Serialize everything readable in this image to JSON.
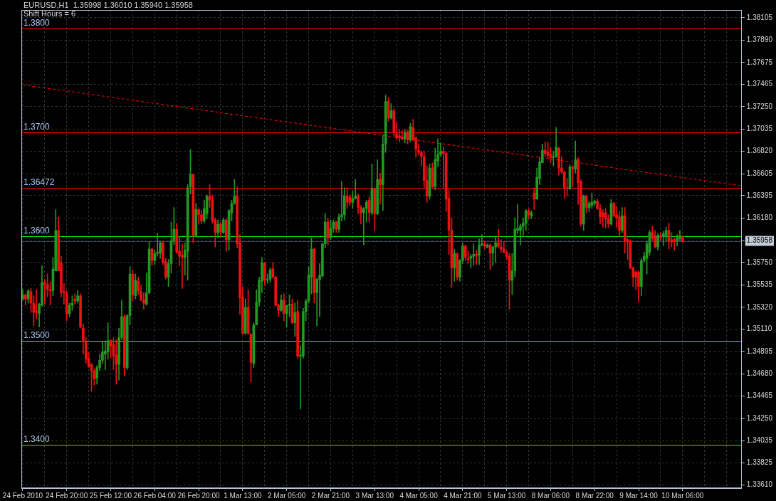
{
  "chart_data": {
    "type": "candlestick",
    "title": "EURUSD,H1  1.35998 1.36010 1.35940 1.35958",
    "subtitle": "Shift Hours = 6",
    "categories": [
      "24 Feb 2010",
      null,
      null,
      null,
      null,
      null,
      null,
      null,
      null,
      null,
      null,
      null,
      null,
      null,
      null,
      null,
      "24 Feb 20:00",
      null,
      null,
      null,
      null,
      null,
      null,
      null,
      null,
      null,
      null,
      null,
      null,
      null,
      null,
      null,
      "25 Feb 12:00",
      null,
      null,
      null,
      null,
      null,
      null,
      null,
      null,
      null,
      null,
      null,
      null,
      null,
      null,
      null,
      "26 Feb 04:00",
      null,
      null,
      null,
      null,
      null,
      null,
      null,
      null,
      null,
      null,
      null,
      null,
      null,
      null,
      null,
      "26 Feb 20:00",
      null,
      null,
      null,
      null,
      null,
      null,
      null,
      null,
      null,
      null,
      null,
      null,
      null,
      null,
      null,
      "1 Mar 13:00",
      null,
      null,
      null,
      null,
      null,
      null,
      null,
      null,
      null,
      null,
      null,
      null,
      null,
      null,
      null,
      "2 Mar 05:00",
      null,
      null,
      null,
      null,
      null,
      null,
      null,
      null,
      null,
      null,
      null,
      null,
      null,
      null,
      null,
      "2 Mar 21:00",
      null,
      null,
      null,
      null,
      null,
      null,
      null,
      null,
      null,
      null,
      null,
      null,
      null,
      null,
      null,
      "3 Mar 13:00",
      null,
      null,
      null,
      null,
      null,
      null,
      null,
      null,
      null,
      null,
      null,
      null,
      null,
      null,
      null,
      "4 Mar 05:00",
      null,
      null,
      null,
      null,
      null,
      null,
      null,
      null,
      null,
      null,
      null,
      null,
      null,
      null,
      null,
      "4 Mar 21:00",
      null,
      null,
      null,
      null,
      null,
      null,
      null,
      null,
      null,
      null,
      null,
      null,
      null,
      null,
      null,
      "5 Mar 13:00",
      null,
      null,
      null,
      null,
      null,
      null,
      null,
      null,
      null,
      null,
      null,
      null,
      null,
      null,
      null,
      "8 Mar 06:00",
      null,
      null,
      null,
      null,
      null,
      null,
      null,
      null,
      null,
      null,
      null,
      null,
      null,
      null,
      null,
      "8 Mar 22:00",
      null,
      null,
      null,
      null,
      null,
      null,
      null,
      null,
      null,
      null,
      null,
      null,
      null,
      null,
      null,
      "9 Mar 14:00",
      null,
      null,
      null,
      null,
      null,
      null,
      null,
      null,
      null,
      null,
      null,
      null,
      null,
      null,
      null,
      "10 Mar 06:00",
      null,
      null,
      null,
      null,
      null,
      null,
      null,
      null,
      null,
      null,
      null,
      null,
      null,
      null,
      null,
      null,
      null,
      null,
      null,
      null,
      null
    ],
    "ohlc": [
      [
        1.354,
        1.3549,
        1.3539,
        1.3544
      ],
      [
        1.3544,
        1.3545,
        1.3534,
        1.354
      ],
      [
        1.354,
        1.3549,
        1.3536,
        1.3548
      ],
      [
        1.3547,
        1.355,
        1.3527,
        1.3536
      ],
      [
        1.3536,
        1.3543,
        1.3514,
        1.3527
      ],
      [
        1.3528,
        1.3549,
        1.3521,
        1.3527
      ],
      [
        1.3526,
        1.3536,
        1.3513,
        1.3535
      ],
      [
        1.3534,
        1.3572,
        1.3533,
        1.3556
      ],
      [
        1.3556,
        1.3559,
        1.3535,
        1.3554
      ],
      [
        1.3554,
        1.3564,
        1.3542,
        1.3549
      ],
      [
        1.3549,
        1.3556,
        1.3534,
        1.3548
      ],
      [
        1.3548,
        1.358,
        1.3543,
        1.3569
      ],
      [
        1.3567,
        1.3626,
        1.3567,
        1.3606
      ],
      [
        1.3606,
        1.3619,
        1.3567,
        1.3567
      ],
      [
        1.3575,
        1.3581,
        1.3542,
        1.3546
      ],
      [
        1.3547,
        1.3555,
        1.3535,
        1.3546
      ],
      [
        1.3546,
        1.3548,
        1.3519,
        1.3526
      ],
      [
        1.3526,
        1.3536,
        1.3523,
        1.3534
      ],
      [
        1.3534,
        1.3543,
        1.3529,
        1.3536
      ],
      [
        1.354,
        1.3545,
        1.3535,
        1.3538
      ],
      [
        1.3538,
        1.3548,
        1.3536,
        1.3543
      ],
      [
        1.3543,
        1.3545,
        1.3512,
        1.3513
      ],
      [
        1.3512,
        1.3516,
        1.3487,
        1.3499
      ],
      [
        1.3499,
        1.3503,
        1.3478,
        1.3482
      ],
      [
        1.3483,
        1.3489,
        1.3474,
        1.3475
      ],
      [
        1.3477,
        1.3478,
        1.3451,
        1.3471
      ],
      [
        1.3471,
        1.3473,
        1.3457,
        1.3463
      ],
      [
        1.3464,
        1.3476,
        1.3458,
        1.3474
      ],
      [
        1.3474,
        1.3487,
        1.3471,
        1.3481
      ],
      [
        1.3481,
        1.3499,
        1.3478,
        1.3489
      ],
      [
        1.3487,
        1.3499,
        1.3472,
        1.349
      ],
      [
        1.3489,
        1.3517,
        1.3482,
        1.35
      ],
      [
        1.35,
        1.3501,
        1.3483,
        1.3495
      ],
      [
        1.3496,
        1.3503,
        1.3472,
        1.3485
      ],
      [
        1.3486,
        1.3501,
        1.3458,
        1.3477
      ],
      [
        1.3477,
        1.3512,
        1.3462,
        1.3503
      ],
      [
        1.3503,
        1.3539,
        1.3501,
        1.3523
      ],
      [
        1.3523,
        1.3525,
        1.3466,
        1.3474
      ],
      [
        1.3474,
        1.3525,
        1.3472,
        1.3524
      ],
      [
        1.3524,
        1.3571,
        1.3515,
        1.3564
      ],
      [
        1.3564,
        1.3568,
        1.3538,
        1.3544
      ],
      [
        1.3543,
        1.3564,
        1.354,
        1.3558
      ],
      [
        1.3557,
        1.3561,
        1.3544,
        1.3548
      ],
      [
        1.3547,
        1.3553,
        1.3538,
        1.3539
      ],
      [
        1.3539,
        1.3546,
        1.353,
        1.3536
      ],
      [
        1.3535,
        1.3565,
        1.3534,
        1.3546
      ],
      [
        1.3546,
        1.3595,
        1.3545,
        1.3588
      ],
      [
        1.3588,
        1.3589,
        1.3572,
        1.3577
      ],
      [
        1.3577,
        1.3587,
        1.3573,
        1.3584
      ],
      [
        1.3584,
        1.3603,
        1.3581,
        1.3585
      ],
      [
        1.3584,
        1.3596,
        1.3579,
        1.3594
      ],
      [
        1.3594,
        1.3596,
        1.3573,
        1.3575
      ],
      [
        1.3576,
        1.3579,
        1.3559,
        1.3561
      ],
      [
        1.3561,
        1.3578,
        1.3552,
        1.3574
      ],
      [
        1.3574,
        1.3614,
        1.3565,
        1.3596
      ],
      [
        1.3596,
        1.3628,
        1.3592,
        1.3607
      ],
      [
        1.3607,
        1.3613,
        1.3584,
        1.3585
      ],
      [
        1.3586,
        1.36,
        1.3572,
        1.3581
      ],
      [
        1.3582,
        1.3593,
        1.355,
        1.358
      ],
      [
        1.358,
        1.3594,
        1.3563,
        1.3587
      ],
      [
        1.3586,
        1.365,
        1.3558,
        1.3647
      ],
      [
        1.3648,
        1.3684,
        1.3641,
        1.366
      ],
      [
        1.366,
        1.366,
        1.3594,
        1.3601
      ],
      [
        1.3601,
        1.3632,
        1.36,
        1.3626
      ],
      [
        1.3626,
        1.3627,
        1.3612,
        1.3621
      ],
      [
        1.3621,
        1.3625,
        1.3612,
        1.3615
      ],
      [
        1.3615,
        1.3635,
        1.3613,
        1.3627
      ],
      [
        1.3622,
        1.364,
        1.3617,
        1.3639
      ],
      [
        1.3639,
        1.365,
        1.3628,
        1.3635
      ],
      [
        1.3635,
        1.364,
        1.3613,
        1.3615
      ],
      [
        1.3616,
        1.3618,
        1.359,
        1.3604
      ],
      [
        1.3604,
        1.3616,
        1.3599,
        1.3612
      ],
      [
        1.3612,
        1.3614,
        1.36,
        1.3604
      ],
      [
        1.3604,
        1.3618,
        1.3603,
        1.3616
      ],
      [
        1.3616,
        1.3617,
        1.3586,
        1.3597
      ],
      [
        1.3597,
        1.3626,
        1.3587,
        1.3625
      ],
      [
        1.3623,
        1.3635,
        1.3615,
        1.3632
      ],
      [
        1.3632,
        1.3655,
        1.3631,
        1.3639
      ],
      [
        1.3639,
        1.3648,
        1.3589,
        1.3593
      ],
      [
        1.3594,
        1.3602,
        1.3525,
        1.3541
      ],
      [
        1.3542,
        1.3552,
        1.3506,
        1.3507
      ],
      [
        1.3507,
        1.354,
        1.3506,
        1.3532
      ],
      [
        1.3532,
        1.3549,
        1.3506,
        1.3507
      ],
      [
        1.3506,
        1.3507,
        1.346,
        1.3479
      ],
      [
        1.3478,
        1.3517,
        1.3474,
        1.3515
      ],
      [
        1.3515,
        1.3549,
        1.3515,
        1.3537
      ],
      [
        1.3537,
        1.3561,
        1.3533,
        1.3558
      ],
      [
        1.3557,
        1.358,
        1.3546,
        1.3575
      ],
      [
        1.3575,
        1.3575,
        1.3553,
        1.3558
      ],
      [
        1.3558,
        1.3564,
        1.3555,
        1.3559
      ],
      [
        1.3559,
        1.357,
        1.3556,
        1.3568
      ],
      [
        1.3569,
        1.3575,
        1.356,
        1.3561
      ],
      [
        1.3561,
        1.3562,
        1.3533,
        1.3534
      ],
      [
        1.3534,
        1.3535,
        1.3523,
        1.3529
      ],
      [
        1.3529,
        1.3544,
        1.3528,
        1.3539
      ],
      [
        1.3539,
        1.3545,
        1.3519,
        1.3526
      ],
      [
        1.3526,
        1.3534,
        1.3513,
        1.3534
      ],
      [
        1.3534,
        1.3544,
        1.3523,
        1.3535
      ],
      [
        1.3535,
        1.354,
        1.3516,
        1.3517
      ],
      [
        1.3517,
        1.3536,
        1.3504,
        1.3527
      ],
      [
        1.3528,
        1.3539,
        1.3483,
        1.3485
      ],
      [
        1.3485,
        1.3495,
        1.3434,
        1.3486
      ],
      [
        1.3485,
        1.3531,
        1.3483,
        1.3528
      ],
      [
        1.3528,
        1.354,
        1.3519,
        1.3538
      ],
      [
        1.3538,
        1.3571,
        1.3536,
        1.3563
      ],
      [
        1.3561,
        1.3599,
        1.3545,
        1.3588
      ],
      [
        1.3588,
        1.3589,
        1.3536,
        1.3546
      ],
      [
        1.3546,
        1.356,
        1.3514,
        1.3559
      ],
      [
        1.3559,
        1.3574,
        1.3523,
        1.3563
      ],
      [
        1.3562,
        1.3594,
        1.3561,
        1.3593
      ],
      [
        1.3593,
        1.3622,
        1.3589,
        1.3614
      ],
      [
        1.3614,
        1.3618,
        1.3592,
        1.3599
      ],
      [
        1.3599,
        1.3616,
        1.3597,
        1.3608
      ],
      [
        1.3608,
        1.3616,
        1.3604,
        1.3614
      ],
      [
        1.3614,
        1.3615,
        1.3604,
        1.3607
      ],
      [
        1.3607,
        1.3622,
        1.3604,
        1.3619
      ],
      [
        1.3619,
        1.3653,
        1.3615,
        1.3621
      ],
      [
        1.3621,
        1.3647,
        1.3616,
        1.3639
      ],
      [
        1.3639,
        1.3647,
        1.3627,
        1.3633
      ],
      [
        1.3638,
        1.364,
        1.363,
        1.3633
      ],
      [
        1.3633,
        1.3644,
        1.3627,
        1.3637
      ],
      [
        1.3637,
        1.3655,
        1.3636,
        1.3639
      ],
      [
        1.3639,
        1.3641,
        1.3622,
        1.3628
      ],
      [
        1.3628,
        1.363,
        1.3612,
        1.3623
      ],
      [
        1.3623,
        1.3628,
        1.3592,
        1.3627
      ],
      [
        1.3627,
        1.3635,
        1.3614,
        1.3633
      ],
      [
        1.3635,
        1.3638,
        1.3614,
        1.3623
      ],
      [
        1.3623,
        1.367,
        1.3621,
        1.3646
      ],
      [
        1.3646,
        1.3647,
        1.3606,
        1.3622
      ],
      [
        1.3622,
        1.3674,
        1.3621,
        1.3655
      ],
      [
        1.3655,
        1.3661,
        1.3631,
        1.365
      ],
      [
        1.365,
        1.3698,
        1.3625,
        1.3689
      ],
      [
        1.3689,
        1.3736,
        1.3681,
        1.373
      ],
      [
        1.373,
        1.3734,
        1.3711,
        1.3714
      ],
      [
        1.3714,
        1.3728,
        1.3713,
        1.3721
      ],
      [
        1.3721,
        1.3723,
        1.3697,
        1.37
      ],
      [
        1.3699,
        1.371,
        1.3693,
        1.3695
      ],
      [
        1.3697,
        1.3703,
        1.3691,
        1.3695
      ],
      [
        1.3696,
        1.3702,
        1.3693,
        1.3694
      ],
      [
        1.3694,
        1.3703,
        1.369,
        1.37
      ],
      [
        1.3701,
        1.3702,
        1.3689,
        1.3693
      ],
      [
        1.3693,
        1.3709,
        1.3691,
        1.3706
      ],
      [
        1.3705,
        1.3713,
        1.3692,
        1.3693
      ],
      [
        1.3695,
        1.3696,
        1.3676,
        1.3684
      ],
      [
        1.3683,
        1.3689,
        1.3679,
        1.3681
      ],
      [
        1.3681,
        1.3682,
        1.3668,
        1.3677
      ],
      [
        1.3677,
        1.3682,
        1.3647,
        1.3654
      ],
      [
        1.3654,
        1.3668,
        1.3633,
        1.3639
      ],
      [
        1.3639,
        1.367,
        1.3636,
        1.3666
      ],
      [
        1.3666,
        1.3671,
        1.3647,
        1.3648
      ],
      [
        1.3648,
        1.3685,
        1.3645,
        1.3674
      ],
      [
        1.3673,
        1.3694,
        1.3667,
        1.3679
      ],
      [
        1.3679,
        1.369,
        1.3677,
        1.3682
      ],
      [
        1.3682,
        1.3686,
        1.3646,
        1.368
      ],
      [
        1.368,
        1.3681,
        1.3624,
        1.3636
      ],
      [
        1.3637,
        1.3645,
        1.3583,
        1.3606
      ],
      [
        1.3606,
        1.3618,
        1.3551,
        1.357
      ],
      [
        1.357,
        1.3588,
        1.3557,
        1.3584
      ],
      [
        1.3584,
        1.3584,
        1.3558,
        1.3561
      ],
      [
        1.3561,
        1.3578,
        1.3557,
        1.3577
      ],
      [
        1.3577,
        1.3594,
        1.3574,
        1.3591
      ],
      [
        1.3591,
        1.3592,
        1.3577,
        1.358
      ],
      [
        1.3579,
        1.3586,
        1.3574,
        1.3578
      ],
      [
        1.3579,
        1.3583,
        1.357,
        1.3581
      ],
      [
        1.3581,
        1.3593,
        1.3573,
        1.3583
      ],
      [
        1.3583,
        1.3587,
        1.3573,
        1.3582
      ],
      [
        1.3582,
        1.3598,
        1.3573,
        1.3592
      ],
      [
        1.3592,
        1.3602,
        1.3591,
        1.3593
      ],
      [
        1.3593,
        1.3596,
        1.3588,
        1.3591
      ],
      [
        1.359,
        1.3593,
        1.3589,
        1.3592
      ],
      [
        1.3592,
        1.3593,
        1.3568,
        1.3584
      ],
      [
        1.3584,
        1.3591,
        1.3572,
        1.359
      ],
      [
        1.359,
        1.36,
        1.3575,
        1.3594
      ],
      [
        1.3594,
        1.3607,
        1.3589,
        1.3591
      ],
      [
        1.359,
        1.3597,
        1.3585,
        1.3588
      ],
      [
        1.3588,
        1.3595,
        1.3584,
        1.3585
      ],
      [
        1.3585,
        1.3586,
        1.3578,
        1.3581
      ],
      [
        1.3581,
        1.3584,
        1.353,
        1.3558
      ],
      [
        1.3558,
        1.3584,
        1.3544,
        1.3567
      ],
      [
        1.3567,
        1.3618,
        1.3561,
        1.3607
      ],
      [
        1.3606,
        1.3631,
        1.3603,
        1.3608
      ],
      [
        1.3606,
        1.3612,
        1.3592,
        1.361
      ],
      [
        1.361,
        1.3618,
        1.3601,
        1.3613
      ],
      [
        1.3613,
        1.3626,
        1.3606,
        1.3625
      ],
      [
        1.3625,
        1.3627,
        1.3617,
        1.3621
      ],
      [
        1.362,
        1.3625,
        1.3617,
        1.3623
      ],
      [
        1.3642,
        1.3647,
        1.3626,
        1.3636
      ],
      [
        1.3636,
        1.3666,
        1.3636,
        1.3657
      ],
      [
        1.3656,
        1.3676,
        1.365,
        1.3672
      ],
      [
        1.3671,
        1.3689,
        1.3671,
        1.3683
      ],
      [
        1.3683,
        1.3691,
        1.3677,
        1.368
      ],
      [
        1.3681,
        1.3691,
        1.3675,
        1.3678
      ],
      [
        1.3679,
        1.3686,
        1.3671,
        1.3676
      ],
      [
        1.3676,
        1.3682,
        1.3668,
        1.3677
      ],
      [
        1.3677,
        1.3705,
        1.3676,
        1.3686
      ],
      [
        1.3685,
        1.3686,
        1.3659,
        1.3666
      ],
      [
        1.3666,
        1.3677,
        1.3661,
        1.3662
      ],
      [
        1.3662,
        1.3663,
        1.3637,
        1.3647
      ],
      [
        1.3647,
        1.3656,
        1.3639,
        1.3646
      ],
      [
        1.3646,
        1.3669,
        1.3645,
        1.3667
      ],
      [
        1.3667,
        1.3668,
        1.3648,
        1.3665
      ],
      [
        1.3665,
        1.3692,
        1.3661,
        1.3674
      ],
      [
        1.3674,
        1.3676,
        1.3631,
        1.3652
      ],
      [
        1.3653,
        1.3655,
        1.361,
        1.3612
      ],
      [
        1.3612,
        1.364,
        1.3606,
        1.3639
      ],
      [
        1.3639,
        1.364,
        1.3623,
        1.3628
      ],
      [
        1.3628,
        1.3634,
        1.3624,
        1.3632
      ],
      [
        1.363,
        1.3642,
        1.3627,
        1.3633
      ],
      [
        1.3632,
        1.3635,
        1.363,
        1.3634
      ],
      [
        1.3634,
        1.3636,
        1.3626,
        1.3627
      ],
      [
        1.3627,
        1.3631,
        1.3612,
        1.3619
      ],
      [
        1.3623,
        1.3626,
        1.3609,
        1.3619
      ],
      [
        1.3623,
        1.3627,
        1.3608,
        1.3617
      ],
      [
        1.3617,
        1.3621,
        1.3609,
        1.3612
      ],
      [
        1.3612,
        1.3636,
        1.3611,
        1.3632
      ],
      [
        1.3632,
        1.3633,
        1.3619,
        1.362
      ],
      [
        1.3621,
        1.3629,
        1.3609,
        1.3618
      ],
      [
        1.3619,
        1.3624,
        1.36,
        1.3606
      ],
      [
        1.3606,
        1.3628,
        1.3604,
        1.362
      ],
      [
        1.362,
        1.3628,
        1.3584,
        1.3596
      ],
      [
        1.3597,
        1.3599,
        1.3578,
        1.3595
      ],
      [
        1.3596,
        1.3597,
        1.3569,
        1.357
      ],
      [
        1.357,
        1.3571,
        1.3552,
        1.3561
      ],
      [
        1.3566,
        1.3567,
        1.3549,
        1.3561
      ],
      [
        1.3566,
        1.3567,
        1.3537,
        1.3552
      ],
      [
        1.3552,
        1.3579,
        1.3543,
        1.3577
      ],
      [
        1.3577,
        1.3585,
        1.3575,
        1.3581
      ],
      [
        1.3579,
        1.3596,
        1.3564,
        1.3593
      ],
      [
        1.3585,
        1.3606,
        1.3582,
        1.3604
      ],
      [
        1.3604,
        1.361,
        1.3596,
        1.3598
      ],
      [
        1.3601,
        1.3606,
        1.3589,
        1.359
      ],
      [
        1.359,
        1.3603,
        1.3587,
        1.3601
      ],
      [
        1.3601,
        1.3604,
        1.3596,
        1.3599
      ],
      [
        1.36,
        1.3605,
        1.3591,
        1.3603
      ],
      [
        1.3601,
        1.3609,
        1.3596,
        1.3606
      ],
      [
        1.3606,
        1.3613,
        1.3588,
        1.3596
      ],
      [
        1.3597,
        1.3604,
        1.359,
        1.3595
      ],
      [
        1.3597,
        1.3599,
        1.3587,
        1.3595
      ],
      [
        1.3596,
        1.3602,
        1.3591,
        1.3599
      ],
      [
        1.3598,
        1.3606,
        1.3596,
        1.3601
      ],
      [
        1.35998,
        1.3601,
        1.3594,
        1.35958
      ],
      null,
      null,
      null,
      null,
      null,
      null,
      null,
      null,
      null,
      null,
      null,
      null,
      null,
      null,
      null,
      null,
      null,
      null,
      null,
      null,
      null
    ],
    "colors": [
      "#229922",
      "#ee1111",
      "#229922",
      "#ee1111",
      "#ee1111",
      "#ee1111",
      "#229922",
      "#229922",
      "#ee1111",
      "#ee1111",
      "#ee1111",
      "#229922",
      "#229922",
      "#ee1111",
      "#ee1111",
      "#ee1111",
      "#ee1111",
      "#229922",
      "#229922",
      "#ee1111",
      "#229922",
      "#ee1111",
      "#ee1111",
      "#ee1111",
      "#ee1111",
      "#ee1111",
      "#ee1111",
      "#229922",
      "#229922",
      "#229922",
      "#229922",
      "#229922",
      "#ee1111",
      "#ee1111",
      "#ee1111",
      "#229922",
      "#229922",
      "#ee1111",
      "#229922",
      "#229922",
      "#ee1111",
      "#229922",
      "#ee1111",
      "#ee1111",
      "#ee1111",
      "#229922",
      "#229922",
      "#ee1111",
      "#229922",
      "#229922",
      "#229922",
      "#ee1111",
      "#ee1111",
      "#229922",
      "#229922",
      "#229922",
      "#ee1111",
      "#ee1111",
      "#ee1111",
      "#229922",
      "#229922",
      "#229922",
      "#ee1111",
      "#229922",
      "#ee1111",
      "#ee1111",
      "#229922",
      "#229922",
      "#ee1111",
      "#ee1111",
      "#ee1111",
      "#229922",
      "#ee1111",
      "#229922",
      "#ee1111",
      "#229922",
      "#229922",
      "#229922",
      "#ee1111",
      "#ee1111",
      "#ee1111",
      "#229922",
      "#ee1111",
      "#ee1111",
      "#229922",
      "#229922",
      "#229922",
      "#229922",
      "#ee1111",
      "#229922",
      "#229922",
      "#ee1111",
      "#ee1111",
      "#ee1111",
      "#229922",
      "#ee1111",
      "#229922",
      "#229922",
      "#ee1111",
      "#229922",
      "#ee1111",
      "#229922",
      "#229922",
      "#229922",
      "#229922",
      "#229922",
      "#ee1111",
      "#229922",
      "#229922",
      "#229922",
      "#229922",
      "#ee1111",
      "#229922",
      "#229922",
      "#ee1111",
      "#229922",
      "#229922",
      "#229922",
      "#ee1111",
      "#ee1111",
      "#229922",
      "#229922",
      "#ee1111",
      "#ee1111",
      "#229922",
      "#229922",
      "#ee1111",
      "#229922",
      "#ee1111",
      "#229922",
      "#ee1111",
      "#229922",
      "#229922",
      "#ee1111",
      "#229922",
      "#ee1111",
      "#ee1111",
      "#ee1111",
      "#ee1111",
      "#229922",
      "#ee1111",
      "#229922",
      "#ee1111",
      "#ee1111",
      "#ee1111",
      "#ee1111",
      "#ee1111",
      "#ee1111",
      "#229922",
      "#ee1111",
      "#229922",
      "#229922",
      "#229922",
      "#ee1111",
      "#ee1111",
      "#ee1111",
      "#ee1111",
      "#229922",
      "#ee1111",
      "#229922",
      "#229922",
      "#ee1111",
      "#ee1111",
      "#229922",
      "#229922",
      "#ee1111",
      "#229922",
      "#229922",
      "#ee1111",
      "#229922",
      "#ee1111",
      "#229922",
      "#229922",
      "#ee1111",
      "#ee1111",
      "#ee1111",
      "#ee1111",
      "#ee1111",
      "#229922",
      "#229922",
      "#229922",
      "#229922",
      "#229922",
      "#229922",
      "#ee1111",
      "#229922",
      "#ee1111",
      "#229922",
      "#229922",
      "#229922",
      "#ee1111",
      "#ee1111",
      "#ee1111",
      "#229922",
      "#229922",
      "#ee1111",
      "#ee1111",
      "#ee1111",
      "#ee1111",
      "#229922",
      "#ee1111",
      "#229922",
      "#ee1111",
      "#ee1111",
      "#229922",
      "#ee1111",
      "#229922",
      "#229922",
      "#229922",
      "#ee1111",
      "#ee1111",
      "#ee1111",
      "#ee1111",
      "#ee1111",
      "#229922",
      "#ee1111",
      "#ee1111",
      "#ee1111",
      "#229922",
      "#ee1111",
      "#ee1111",
      "#ee1111",
      "#ee1111",
      "#ee1111",
      "#ee1111",
      "#229922",
      "#229922",
      "#229922",
      "#229922",
      "#ee1111",
      "#ee1111",
      "#229922",
      "#ee1111",
      "#229922",
      "#229922",
      "#ee1111",
      "#ee1111",
      "#ee1111",
      "#229922",
      "#229922",
      "#ee1111",
      null,
      null,
      null,
      null,
      null,
      null,
      null,
      null,
      null,
      null,
      null,
      null,
      null,
      null,
      null,
      null,
      null,
      null,
      null,
      null,
      null
    ],
    "series": [
      {
        "type": "line",
        "color": "#ff0000",
        "line_style": "dashed",
        "marker": "none",
        "values": [
          1.3746,
          null,
          null,
          null,
          null,
          null,
          null,
          null,
          null,
          null,
          null,
          null,
          null,
          null,
          null,
          null,
          null,
          null,
          null,
          null,
          null,
          null,
          null,
          null,
          null,
          null,
          null,
          null,
          null,
          null,
          null,
          null,
          null,
          null,
          null,
          null,
          null,
          null,
          null,
          null,
          null,
          null,
          null,
          null,
          null,
          null,
          null,
          null,
          null,
          null,
          null,
          null,
          null,
          null,
          null,
          null,
          null,
          null,
          null,
          null,
          null,
          null,
          null,
          null,
          null,
          null,
          null,
          null,
          null,
          null,
          null,
          null,
          null,
          null,
          null,
          null,
          null,
          null,
          null,
          null,
          null,
          null,
          null,
          null,
          null,
          null,
          null,
          null,
          null,
          null,
          null,
          null,
          null,
          null,
          null,
          null,
          null,
          null,
          null,
          null,
          null,
          null,
          null,
          null,
          null,
          null,
          null,
          null,
          null,
          null,
          null,
          null,
          null,
          null,
          null,
          null,
          null,
          null,
          null,
          null,
          null,
          null,
          null,
          null,
          null,
          null,
          null,
          null,
          null,
          null,
          null,
          null,
          null,
          null,
          null,
          null,
          null,
          null,
          null,
          null,
          null,
          null,
          null,
          null,
          null,
          null,
          null,
          null,
          null,
          null,
          null,
          null,
          null,
          null,
          null,
          null,
          null,
          null,
          null,
          null,
          null,
          null,
          null,
          null,
          null,
          null,
          null,
          null,
          null,
          null,
          null,
          null,
          null,
          null,
          null,
          null,
          null,
          null,
          null,
          null,
          null,
          null,
          null,
          null,
          null,
          null,
          null,
          null,
          null,
          null,
          null,
          null,
          null,
          null,
          null,
          null,
          null,
          null,
          null,
          null,
          null,
          null,
          null,
          null,
          null,
          null,
          null,
          null,
          null,
          null,
          null,
          null,
          null,
          null,
          null,
          null,
          null,
          null,
          null,
          null,
          null,
          null,
          null,
          null,
          null,
          null,
          null,
          null,
          null,
          null,
          null,
          null,
          null,
          null,
          null,
          null,
          null,
          null,
          null,
          null,
          null,
          null,
          null,
          null,
          null,
          null,
          null,
          null,
          null,
          null,
          null,
          null,
          null,
          null,
          null,
          null,
          null,
          null,
          null,
          null,
          null,
          1.3649
        ]
      }
    ],
    "ylim": [
      1.3358,
      1.3818
    ],
    "yticks": [
      {
        "value": 1.3361,
        "label": "1.33610"
      },
      1.33825,
      1.34035,
      {
        "value": 1.3425,
        "label": "1.34250"
      },
      1.34465,
      {
        "value": 1.3468,
        "label": "1.34680"
      },
      1.34895,
      {
        "value": 1.3511,
        "label": "1.35110"
      },
      {
        "value": 1.3532,
        "label": "1.35320"
      },
      1.35535,
      {
        "value": 1.3575,
        "label": "1.35750"
      },
      1.35958,
      {
        "value": 1.3618,
        "label": "1.36180"
      },
      1.36395,
      1.36605,
      {
        "value": 1.3682,
        "label": "1.36820"
      },
      1.37035,
      {
        "value": 1.3725,
        "label": "1.37250"
      },
      1.37465,
      1.37675,
      {
        "value": 1.3789,
        "label": "1.37890"
      },
      1.38105
    ],
    "grid": true,
    "legend": false,
    "ref_lines": [
      {
        "axis": "y",
        "value": 1.38,
        "label": "1.3800",
        "color": "#ff0000"
      },
      {
        "axis": "y",
        "value": 1.37,
        "label": "1.3700",
        "color": "#ff0000"
      },
      {
        "axis": "y",
        "value": 1.36472,
        "label": "1.36472",
        "color": "#ff0000"
      },
      {
        "axis": "y",
        "value": 1.36,
        "label": "1.3600",
        "color": "#00ff00"
      },
      {
        "axis": "y",
        "value": 1.35,
        "label": "1.3500",
        "color": "#00ff00"
      },
      {
        "axis": "y",
        "value": 1.34,
        "label": "1.3400",
        "color": "#00ff00"
      },
      {
        "axis": "y",
        "value": 1.35958,
        "color": "#3a4352"
      }
    ]
  }
}
